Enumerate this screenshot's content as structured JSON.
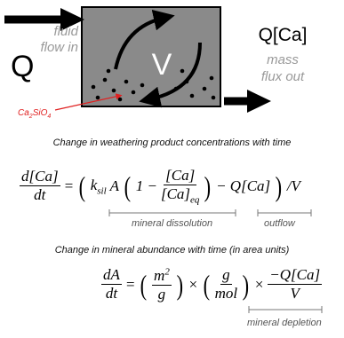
{
  "inflow": {
    "symbol": "Q",
    "lines": [
      "fluid",
      "flow in"
    ]
  },
  "reservoir": {
    "label": "V"
  },
  "outflow": {
    "symbol": "Q[Ca]",
    "lines": [
      "mass",
      "flux out"
    ]
  },
  "mineral": {
    "parts": [
      "Ca",
      "2",
      "SiO",
      "4"
    ]
  },
  "equation_1": {
    "caption": "Change in weathering product concentrations with time",
    "tokens": [
      {
        "num": "d[Ca]",
        "den": "dt"
      },
      "=",
      "(",
      {
        "base": "k",
        "sub": "sil"
      },
      "A",
      "(",
      "1 −",
      {
        "num": "[Ca]",
        "den": {
          "base": "[Ca]",
          "sub": "eq"
        }
      },
      ")",
      "− Q[Ca]",
      ")",
      "/V"
    ],
    "brackets": [
      "mineral dissolution",
      "outflow"
    ]
  },
  "equation_2": {
    "caption": "Change in mineral abundance with time (in area units)",
    "tokens": [
      {
        "num": "dA",
        "den": "dt"
      },
      "=",
      "(",
      {
        "num": {
          "base": "m",
          "sup": "2"
        },
        "den": "g"
      },
      ")",
      "×",
      "(",
      {
        "num": "g",
        "den": "mol"
      },
      ")",
      "×",
      {
        "num": "−Q[Ca]",
        "den": "V"
      }
    ],
    "brackets": [
      "mineral depletion"
    ]
  }
}
